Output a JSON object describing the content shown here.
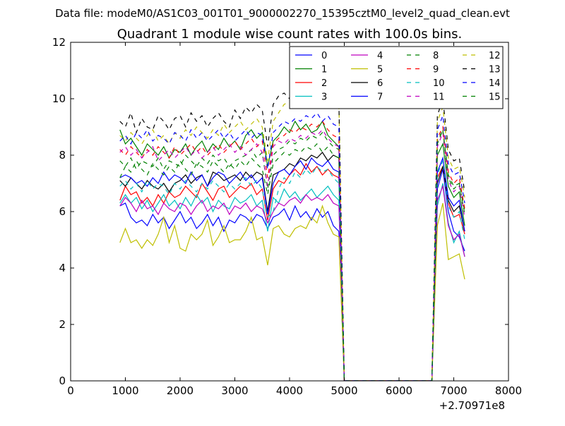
{
  "suptitle": "Data file: modeM0/AS1C03_001T01_9000002270_15395cztM0_level2_quad_clean.evt",
  "chart_data": {
    "type": "line",
    "title": "Quadrant 1 module wise count rates with 100.0s bins.",
    "xlabel": "",
    "ylabel": "",
    "x_offset_label": "+2.70971e8",
    "xlim": [
      0,
      8000
    ],
    "ylim": [
      0,
      12
    ],
    "x_ticks": [
      "0",
      "1000",
      "2000",
      "3000",
      "4000",
      "5000",
      "6000",
      "7000",
      "8000"
    ],
    "y_ticks": [
      "0",
      "2",
      "4",
      "6",
      "8",
      "10",
      "12"
    ],
    "grid": false,
    "legend_position": "top-right",
    "x": [
      900,
      1000,
      1100,
      1200,
      1300,
      1400,
      1500,
      1600,
      1700,
      1800,
      1900,
      2000,
      2100,
      2200,
      2300,
      2400,
      2500,
      2600,
      2700,
      2800,
      2900,
      3000,
      3100,
      3200,
      3300,
      3400,
      3500,
      3600,
      3700,
      3800,
      3900,
      4000,
      4100,
      4200,
      4300,
      4400,
      4500,
      4600,
      4700,
      4800,
      4900,
      5000,
      5100,
      5200,
      5300,
      5400,
      5500,
      5600,
      5700,
      5800,
      5900,
      6000,
      6100,
      6200,
      6300,
      6400,
      6500,
      6600,
      6700,
      6800,
      6900,
      7000,
      7100,
      7200
    ],
    "series": [
      {
        "name": "0",
        "color": "#0000ff",
        "dash": false,
        "values": [
          6.2,
          6.3,
          5.8,
          5.6,
          5.7,
          5.5,
          5.9,
          5.6,
          5.8,
          5.4,
          5.7,
          6.0,
          5.6,
          5.8,
          5.4,
          5.6,
          5.9,
          5.5,
          5.8,
          5.3,
          5.7,
          5.6,
          5.9,
          5.8,
          5.6,
          5.9,
          5.8,
          5.4,
          5.8,
          5.9,
          6.1,
          5.7,
          6.2,
          5.8,
          6.0,
          5.7,
          6.1,
          5.8,
          6.0,
          5.5,
          5.3,
          0,
          0,
          0,
          0,
          0,
          0,
          0,
          0,
          0,
          0,
          0,
          0,
          0,
          0,
          0,
          0,
          0,
          6.8,
          7.5,
          6.0,
          5.3,
          5.1,
          4.6
        ]
      },
      {
        "name": "1",
        "color": "#008000",
        "dash": false,
        "values": [
          8.9,
          8.4,
          8.6,
          8.3,
          8.0,
          8.4,
          8.2,
          8.0,
          8.3,
          7.9,
          8.2,
          8.1,
          8.4,
          8.0,
          8.3,
          8.5,
          8.1,
          8.4,
          8.2,
          8.6,
          8.3,
          8.5,
          8.2,
          8.7,
          8.9,
          8.6,
          8.8,
          7.6,
          8.5,
          8.7,
          9.0,
          8.8,
          9.2,
          8.9,
          9.1,
          8.8,
          8.9,
          9.2,
          8.7,
          8.5,
          8.3,
          0,
          0,
          0,
          0,
          0,
          0,
          0,
          0,
          0,
          0,
          0,
          0,
          0,
          0,
          0,
          0,
          0,
          8.0,
          8.4,
          6.9,
          6.5,
          6.7,
          5.5
        ]
      },
      {
        "name": "2",
        "color": "#ff0000",
        "dash": false,
        "values": [
          6.4,
          6.9,
          6.6,
          6.7,
          6.3,
          6.5,
          6.2,
          6.6,
          6.3,
          6.7,
          6.5,
          6.6,
          6.9,
          6.7,
          6.5,
          7.0,
          6.7,
          6.4,
          6.8,
          6.9,
          6.5,
          6.7,
          6.9,
          6.8,
          7.0,
          6.6,
          6.8,
          5.7,
          6.8,
          7.1,
          7.0,
          7.3,
          7.5,
          7.3,
          7.7,
          7.4,
          7.6,
          7.3,
          7.5,
          7.3,
          7.2,
          0,
          0,
          0,
          0,
          0,
          0,
          0,
          0,
          0,
          0,
          0,
          0,
          0,
          0,
          0,
          0,
          0,
          7.2,
          7.6,
          6.3,
          5.8,
          5.9,
          5.2
        ]
      },
      {
        "name": "3",
        "color": "#00bfbf",
        "dash": false,
        "values": [
          6.3,
          6.6,
          6.3,
          6.5,
          6.1,
          6.4,
          6.0,
          6.3,
          6.6,
          6.2,
          6.4,
          6.1,
          6.5,
          6.2,
          6.6,
          6.3,
          6.5,
          6.0,
          6.4,
          6.2,
          6.1,
          6.5,
          6.3,
          6.4,
          6.6,
          6.2,
          6.4,
          5.3,
          6.5,
          6.3,
          6.8,
          6.5,
          6.7,
          6.4,
          6.6,
          6.8,
          6.5,
          6.7,
          6.9,
          6.6,
          6.4,
          0,
          0,
          0,
          0,
          0,
          0,
          0,
          0,
          0,
          0,
          0,
          0,
          0,
          0,
          0,
          0,
          0,
          6.2,
          7.0,
          5.6,
          4.9,
          5.3,
          4.4
        ]
      },
      {
        "name": "4",
        "color": "#bf00bf",
        "dash": false,
        "values": [
          6.2,
          6.5,
          6.3,
          6.0,
          6.4,
          6.1,
          6.2,
          5.9,
          6.3,
          6.1,
          6.0,
          6.3,
          6.2,
          5.9,
          6.2,
          6.4,
          6.0,
          6.2,
          6.1,
          6.3,
          5.9,
          6.2,
          6.1,
          6.3,
          6.0,
          6.2,
          6.1,
          5.6,
          6.0,
          6.3,
          6.2,
          6.4,
          6.5,
          6.3,
          6.6,
          6.4,
          6.5,
          6.4,
          6.6,
          6.3,
          6.2,
          0,
          0,
          0,
          0,
          0,
          0,
          0,
          0,
          0,
          0,
          0,
          0,
          0,
          0,
          0,
          0,
          0,
          6.4,
          6.9,
          5.5,
          5.0,
          5.2,
          4.4
        ]
      },
      {
        "name": "5",
        "color": "#bfbf00",
        "dash": false,
        "values": [
          4.9,
          5.4,
          4.9,
          5.0,
          4.7,
          5.0,
          4.8,
          5.2,
          5.8,
          4.9,
          5.5,
          4.7,
          4.6,
          5.2,
          5.0,
          5.2,
          5.7,
          4.8,
          5.1,
          5.5,
          4.9,
          5.0,
          5.0,
          5.3,
          5.8,
          5.0,
          5.1,
          4.1,
          5.4,
          5.5,
          5.2,
          5.1,
          5.4,
          5.5,
          5.4,
          5.8,
          5.6,
          6.2,
          5.6,
          5.2,
          5.1,
          0,
          0,
          0,
          0,
          0,
          0,
          0,
          0,
          0,
          0,
          0,
          0,
          0,
          0,
          0,
          0,
          0,
          5.5,
          6.3,
          4.3,
          4.4,
          4.5,
          3.6
        ]
      },
      {
        "name": "6",
        "color": "#000000",
        "dash": false,
        "values": [
          7.1,
          6.9,
          7.2,
          7.0,
          6.8,
          7.1,
          6.9,
          6.8,
          7.0,
          6.7,
          7.0,
          7.1,
          7.3,
          7.0,
          7.2,
          7.3,
          6.9,
          7.4,
          7.3,
          7.1,
          7.2,
          7.3,
          7.1,
          7.4,
          7.2,
          7.4,
          7.3,
          6.0,
          7.3,
          7.4,
          7.5,
          7.7,
          7.6,
          7.9,
          7.8,
          8.0,
          7.9,
          8.1,
          7.8,
          8.0,
          7.9,
          0,
          0,
          0,
          0,
          0,
          0,
          0,
          0,
          0,
          0,
          0,
          0,
          0,
          0,
          0,
          0,
          0,
          7.0,
          7.6,
          6.4,
          6.0,
          6.2,
          5.3
        ]
      },
      {
        "name": "7",
        "color": "#0000ff",
        "dash": false,
        "values": [
          7.2,
          7.3,
          7.2,
          7.0,
          7.1,
          6.9,
          7.2,
          7.0,
          7.4,
          7.1,
          7.3,
          7.2,
          7.0,
          7.4,
          7.1,
          7.3,
          6.9,
          7.2,
          7.4,
          7.3,
          7.0,
          7.2,
          7.4,
          7.1,
          7.3,
          7.0,
          7.2,
          5.9,
          7.0,
          7.4,
          7.5,
          7.3,
          7.6,
          7.8,
          7.5,
          7.9,
          7.7,
          7.6,
          7.8,
          7.5,
          7.4,
          0,
          0,
          0,
          0,
          0,
          0,
          0,
          0,
          0,
          0,
          0,
          0,
          0,
          0,
          0,
          0,
          0,
          7.4,
          7.9,
          6.5,
          6.2,
          6.4,
          5.3
        ]
      },
      {
        "name": "8",
        "color": "#008000",
        "dash": true,
        "values": [
          7.8,
          7.6,
          7.9,
          7.5,
          7.8,
          7.7,
          7.6,
          7.9,
          7.5,
          7.8,
          7.7,
          7.6,
          8.0,
          7.8,
          7.6,
          7.9,
          7.7,
          8.0,
          7.8,
          7.9,
          7.6,
          7.8,
          7.9,
          8.0,
          8.2,
          7.9,
          8.1,
          6.8,
          8.0,
          8.2,
          8.3,
          8.5,
          8.4,
          8.6,
          8.5,
          8.7,
          8.6,
          8.8,
          8.5,
          8.3,
          8.2,
          0,
          0,
          0,
          0,
          0,
          0,
          0,
          0,
          0,
          0,
          0,
          0,
          0,
          0,
          0,
          0,
          0,
          8.5,
          8.9,
          7.3,
          6.9,
          7.0,
          6.0
        ]
      },
      {
        "name": "9",
        "color": "#ff0000",
        "dash": true,
        "values": [
          8.2,
          8.0,
          8.3,
          8.1,
          7.9,
          8.2,
          8.0,
          8.3,
          8.1,
          7.9,
          8.3,
          8.0,
          8.2,
          8.4,
          8.1,
          8.3,
          8.0,
          8.2,
          8.4,
          8.1,
          8.3,
          8.5,
          8.2,
          8.4,
          8.6,
          8.3,
          8.5,
          7.2,
          8.4,
          8.6,
          8.7,
          8.9,
          8.8,
          9.0,
          8.9,
          9.1,
          9.0,
          9.2,
          8.9,
          8.7,
          8.6,
          0,
          0,
          0,
          0,
          0,
          0,
          0,
          0,
          0,
          0,
          0,
          0,
          0,
          0,
          0,
          0,
          0,
          8.6,
          9.0,
          7.4,
          7.0,
          7.2,
          6.1
        ]
      },
      {
        "name": "10",
        "color": "#00bfbf",
        "dash": true,
        "values": [
          6.9,
          7.1,
          6.8,
          7.0,
          6.7,
          7.1,
          6.8,
          7.0,
          6.9,
          6.6,
          7.0,
          6.8,
          7.1,
          6.9,
          6.7,
          7.0,
          6.8,
          7.1,
          6.9,
          6.7,
          7.0,
          6.8,
          7.0,
          7.2,
          6.9,
          7.1,
          6.8,
          5.8,
          6.0,
          6.8,
          7.2,
          7.0,
          7.4,
          7.2,
          7.5,
          7.3,
          7.6,
          7.4,
          7.5,
          7.2,
          7.0,
          0,
          0,
          0,
          0,
          0,
          0,
          0,
          0,
          0,
          0,
          0,
          0,
          0,
          0,
          0,
          0,
          0,
          7.3,
          7.8,
          6.2,
          5.8,
          6.0,
          5.0
        ]
      },
      {
        "name": "11",
        "color": "#bf00bf",
        "dash": true,
        "values": [
          8.1,
          8.3,
          8.0,
          8.2,
          7.9,
          8.1,
          8.3,
          7.8,
          8.0,
          8.2,
          7.9,
          8.1,
          8.3,
          8.0,
          8.2,
          7.9,
          8.1,
          8.3,
          8.0,
          8.2,
          8.4,
          8.1,
          8.3,
          8.0,
          8.2,
          8.4,
          8.1,
          6.9,
          8.3,
          8.5,
          8.4,
          8.6,
          8.5,
          8.7,
          8.6,
          8.8,
          8.7,
          8.9,
          8.6,
          8.4,
          8.3,
          0,
          0,
          0,
          0,
          0,
          0,
          0,
          0,
          0,
          0,
          0,
          0,
          0,
          0,
          0,
          0,
          0,
          8.3,
          8.8,
          7.1,
          6.7,
          6.9,
          5.8
        ]
      },
      {
        "name": "12",
        "color": "#bfbf00",
        "dash": true,
        "values": [
          8.7,
          8.5,
          8.8,
          8.6,
          8.4,
          8.7,
          8.9,
          8.5,
          8.7,
          8.4,
          8.8,
          8.6,
          8.9,
          8.7,
          9.0,
          8.8,
          8.6,
          8.9,
          8.7,
          9.1,
          8.8,
          9.0,
          9.2,
          8.9,
          9.1,
          9.3,
          9.0,
          7.8,
          9.2,
          9.5,
          9.8,
          9.9,
          9.7,
          10.0,
          9.9,
          10.1,
          10.0,
          9.8,
          10.2,
          10.1,
          9.9,
          0,
          0,
          0,
          0,
          0,
          0,
          0,
          0,
          0,
          0,
          0,
          0,
          0,
          0,
          0,
          0,
          0,
          9.2,
          9.7,
          7.9,
          7.5,
          7.6,
          6.5
        ]
      },
      {
        "name": "13",
        "color": "#000000",
        "dash": true,
        "values": [
          9.2,
          9.0,
          9.5,
          8.8,
          9.3,
          9.0,
          8.9,
          9.4,
          9.2,
          8.9,
          9.3,
          9.4,
          9.0,
          9.5,
          9.2,
          9.4,
          9.0,
          9.3,
          9.5,
          9.2,
          9.0,
          9.6,
          9.3,
          9.7,
          9.5,
          9.8,
          9.6,
          8.3,
          9.8,
          10.1,
          10.2,
          10.0,
          10.3,
          10.1,
          10.4,
          10.2,
          10.3,
          10.5,
          10.2,
          10.0,
          9.9,
          0,
          0,
          0,
          0,
          0,
          0,
          0,
          0,
          0,
          0,
          0,
          0,
          0,
          0,
          0,
          0,
          0,
          9.4,
          10.0,
          8.2,
          7.8,
          7.9,
          6.7
        ]
      },
      {
        "name": "14",
        "color": "#0000ff",
        "dash": true,
        "values": [
          8.5,
          8.7,
          8.4,
          8.8,
          8.6,
          8.9,
          8.5,
          8.7,
          8.6,
          8.4,
          8.8,
          8.7,
          8.5,
          8.9,
          8.6,
          8.8,
          8.5,
          8.7,
          8.9,
          8.6,
          8.8,
          8.5,
          8.7,
          8.9,
          8.6,
          8.8,
          8.7,
          7.5,
          8.8,
          9.0,
          9.2,
          9.1,
          9.3,
          9.2,
          9.4,
          9.3,
          9.5,
          9.2,
          9.4,
          9.1,
          9.0,
          0,
          0,
          0,
          0,
          0,
          0,
          0,
          0,
          0,
          0,
          0,
          0,
          0,
          0,
          0,
          0,
          0,
          8.9,
          9.4,
          7.7,
          7.3,
          7.4,
          6.3
        ]
      },
      {
        "name": "15",
        "color": "#008000",
        "dash": true,
        "values": [
          7.2,
          7.6,
          7.4,
          7.8,
          7.5,
          7.3,
          7.7,
          7.5,
          7.3,
          7.6,
          7.4,
          7.8,
          7.5,
          7.3,
          7.7,
          7.6,
          7.4,
          7.8,
          7.6,
          7.4,
          7.7,
          7.5,
          7.8,
          7.6,
          7.9,
          7.7,
          7.5,
          6.6,
          7.7,
          7.9,
          8.1,
          8.0,
          8.2,
          8.1,
          8.3,
          8.2,
          8.4,
          8.1,
          8.3,
          8.0,
          7.9,
          0,
          0,
          0,
          0,
          0,
          0,
          0,
          0,
          0,
          0,
          0,
          0,
          0,
          0,
          0,
          0,
          0,
          8.4,
          8.9,
          7.2,
          6.8,
          7.0,
          5.9
        ]
      }
    ]
  }
}
